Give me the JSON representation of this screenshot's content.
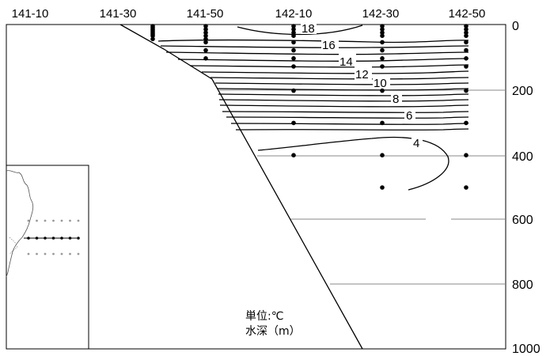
{
  "chart_data": {
    "type": "contour-section",
    "longitude_labels": [
      "141-10",
      "141-30",
      "141-50",
      "142-10",
      "142-30",
      "142-50"
    ],
    "depth_ticks": [
      0,
      200,
      400,
      600,
      800,
      1000
    ],
    "depth_tick_labels": [
      "0",
      "200",
      "400",
      "600",
      "800",
      "1000"
    ],
    "depth_range": [
      0,
      1000
    ],
    "isotherm_labels": [
      "18",
      "16",
      "14",
      "12",
      "10",
      "8",
      "6",
      "4"
    ],
    "stations": [
      {
        "lon": "141-30",
        "sample_depths": [
          0,
          5,
          10,
          15,
          20,
          25,
          30,
          40
        ]
      },
      {
        "lon": "141-50",
        "sample_depths": [
          0,
          10,
          20,
          30,
          40,
          50,
          75,
          100
        ]
      },
      {
        "lon": "142-10",
        "sample_depths": [
          0,
          10,
          20,
          30,
          50,
          75,
          100,
          125,
          200,
          300,
          400
        ]
      },
      {
        "lon": "142-30",
        "sample_depths": [
          0,
          10,
          20,
          30,
          50,
          75,
          100,
          125,
          200,
          300,
          400,
          500
        ]
      },
      {
        "lon": "142-50",
        "sample_depths": [
          0,
          10,
          20,
          30,
          50,
          75,
          100,
          125,
          200,
          300,
          400,
          500
        ]
      }
    ],
    "colors": {
      "line": "#000000",
      "grid": "#888888",
      "map_dots": "#999999"
    }
  },
  "legend": {
    "unit_line": "単位:℃",
    "depth_line": "水深（m）"
  }
}
